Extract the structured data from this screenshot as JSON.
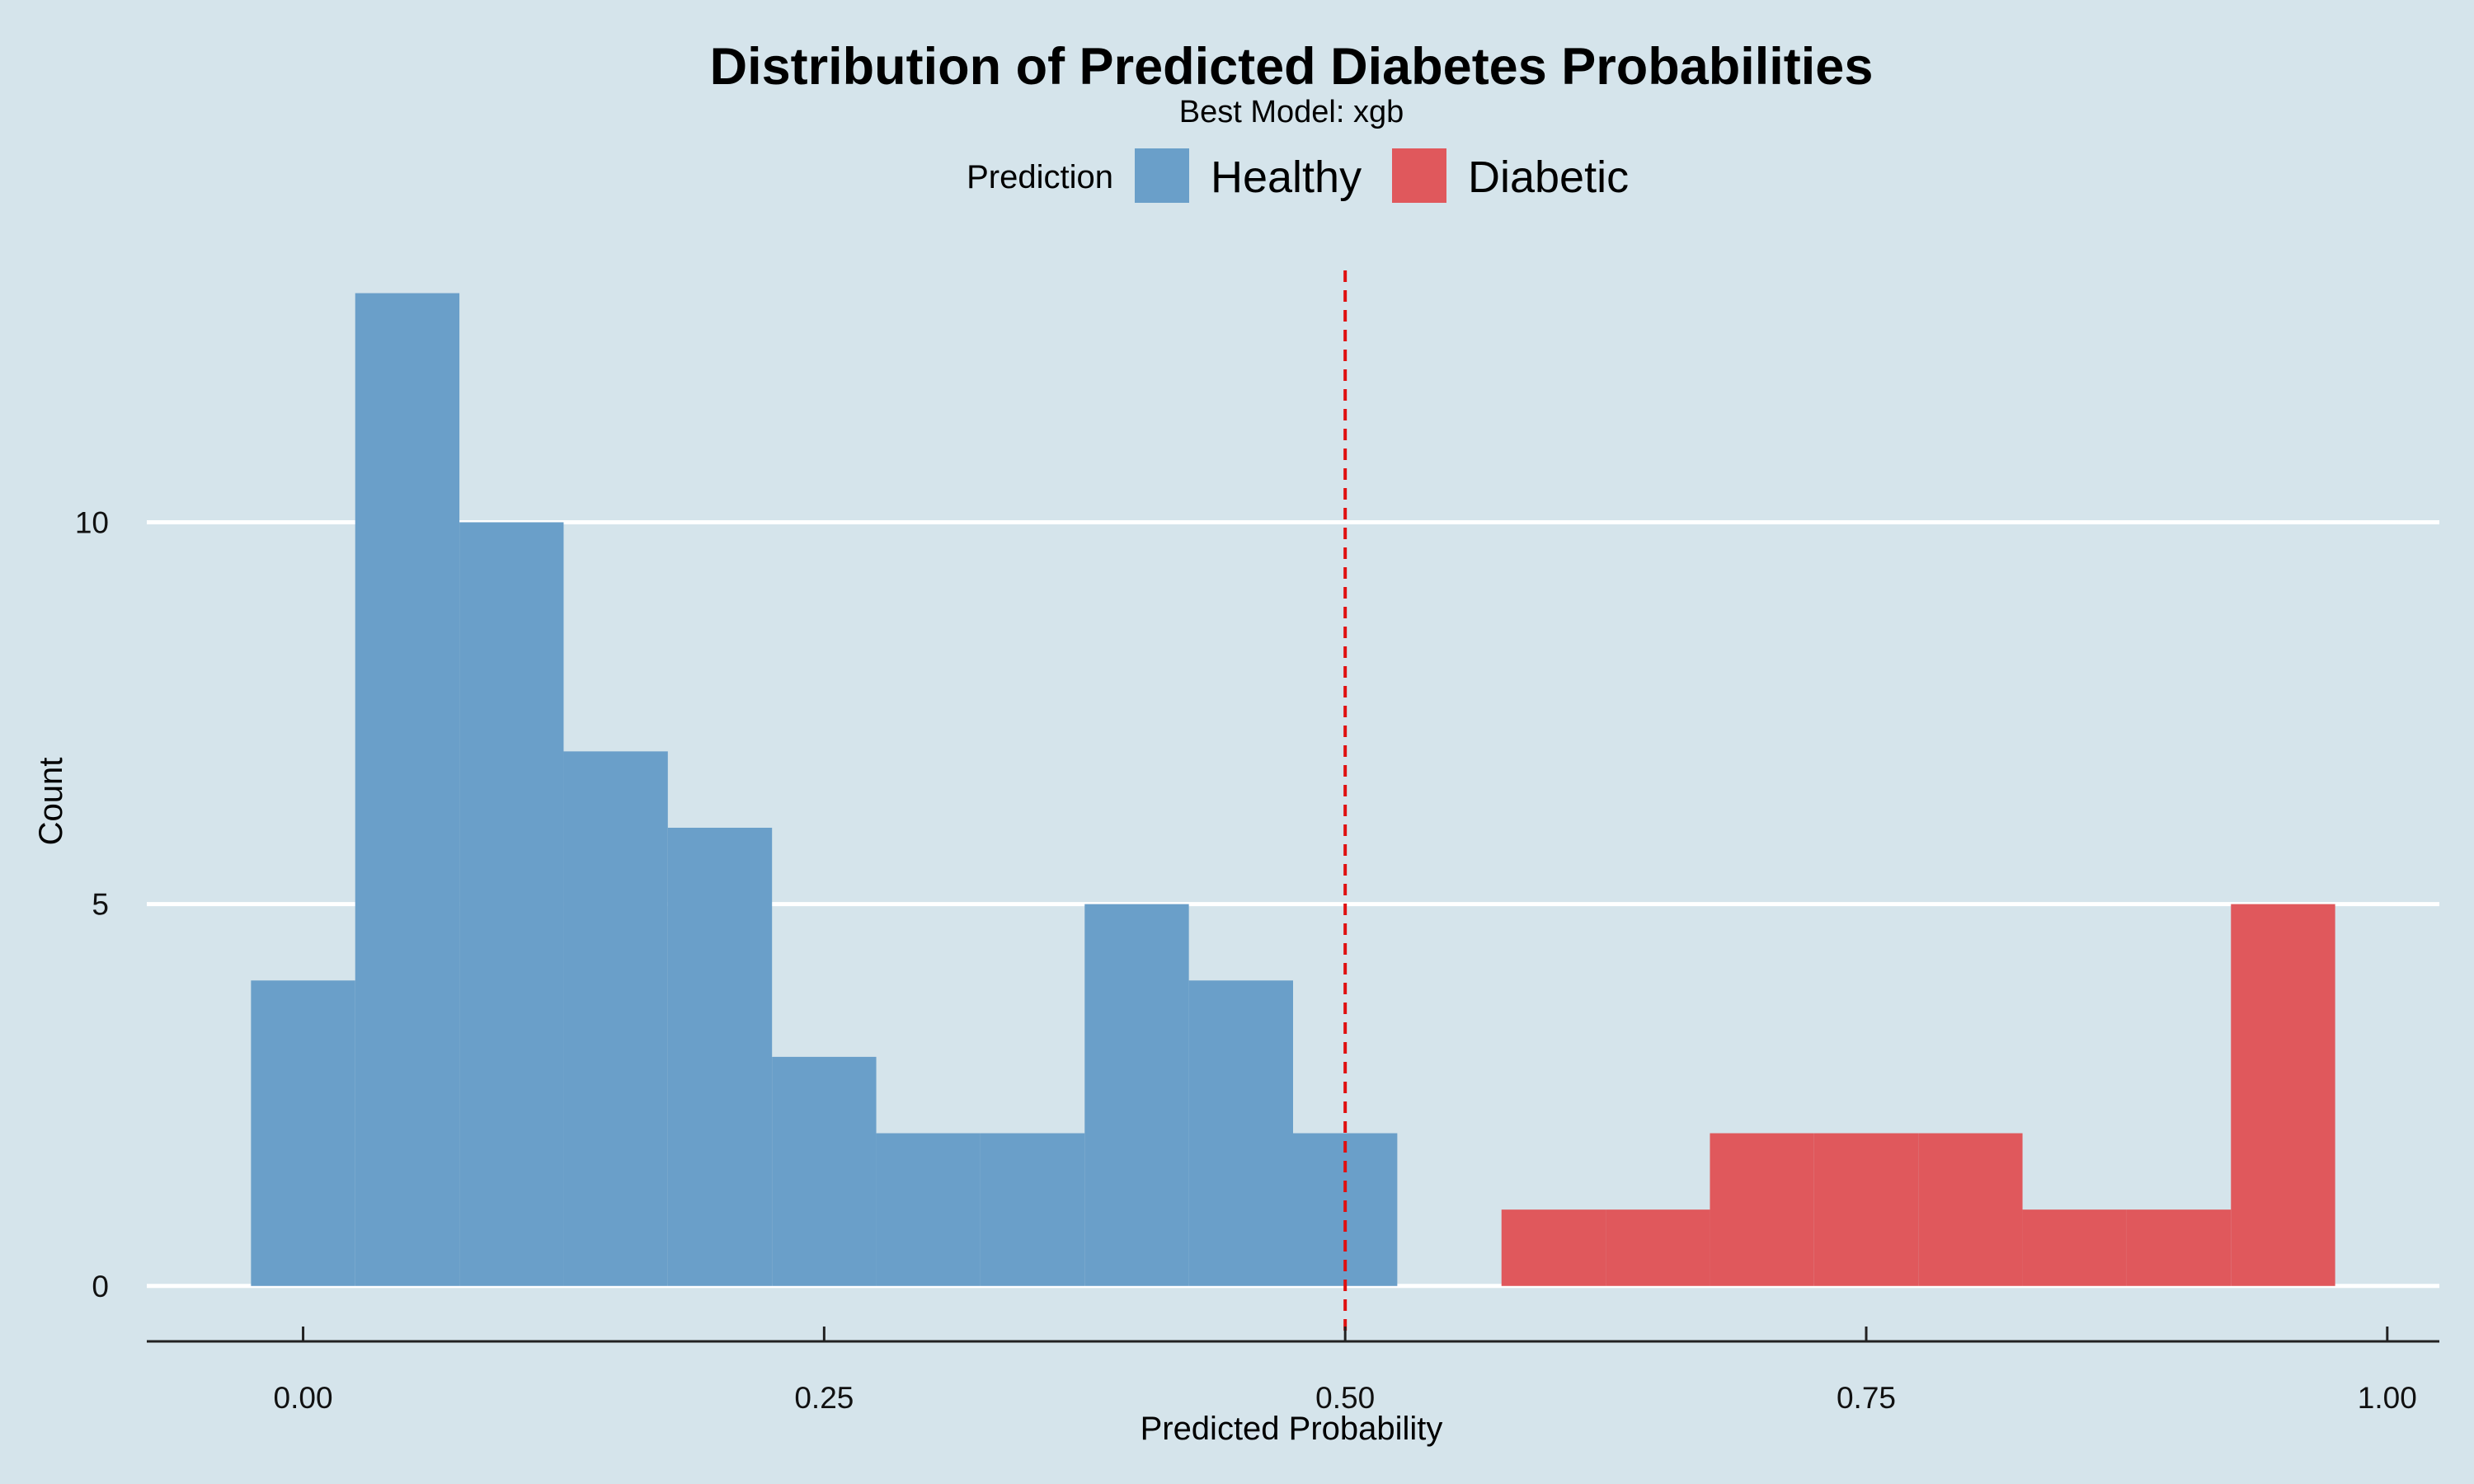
{
  "chart_data": {
    "type": "bar",
    "title": "Distribution of Predicted Diabetes Probabilities",
    "subtitle": "Best Model: xgb",
    "xlabel": "Predicted Probability",
    "ylabel": "Count",
    "xlim": [
      -0.075,
      1.025
    ],
    "ylim": [
      -0.65,
      13.6
    ],
    "x_ticks": [
      0.0,
      0.25,
      0.5,
      0.75,
      1.0
    ],
    "x_tick_labels": [
      "0.00",
      "0.25",
      "0.50",
      "0.75",
      "1.00"
    ],
    "y_ticks": [
      0,
      5,
      10
    ],
    "y_tick_labels": [
      "0",
      "5",
      "10"
    ],
    "grid": "horizontal major",
    "legend": {
      "title": "Prediction",
      "position": "top",
      "entries": [
        {
          "label": "Healthy",
          "color": "#6a9fc9"
        },
        {
          "label": "Diabetic",
          "color": "#e0585c"
        }
      ]
    },
    "bin_width": 0.05,
    "series": [
      {
        "name": "Healthy",
        "color": "#6a9fc9",
        "bins": [
          {
            "center": 0.0,
            "count": 4
          },
          {
            "center": 0.05,
            "count": 13
          },
          {
            "center": 0.1,
            "count": 10
          },
          {
            "center": 0.15,
            "count": 7
          },
          {
            "center": 0.2,
            "count": 6
          },
          {
            "center": 0.25,
            "count": 3
          },
          {
            "center": 0.3,
            "count": 2
          },
          {
            "center": 0.35,
            "count": 2
          },
          {
            "center": 0.4,
            "count": 5
          },
          {
            "center": 0.45,
            "count": 4
          },
          {
            "center": 0.5,
            "count": 2
          }
        ]
      },
      {
        "name": "Diabetic",
        "color": "#e0585c",
        "bins": [
          {
            "center": 0.6,
            "count": 1
          },
          {
            "center": 0.65,
            "count": 1
          },
          {
            "center": 0.7,
            "count": 2
          },
          {
            "center": 0.75,
            "count": 2
          },
          {
            "center": 0.8,
            "count": 2
          },
          {
            "center": 0.85,
            "count": 1
          },
          {
            "center": 0.9,
            "count": 1
          },
          {
            "center": 0.95,
            "count": 5
          }
        ]
      }
    ],
    "threshold": {
      "x": 0.5,
      "style": "dashed",
      "color": "#e01010"
    },
    "background": "#d5e4eb",
    "gridline_color": "#ffffff"
  }
}
